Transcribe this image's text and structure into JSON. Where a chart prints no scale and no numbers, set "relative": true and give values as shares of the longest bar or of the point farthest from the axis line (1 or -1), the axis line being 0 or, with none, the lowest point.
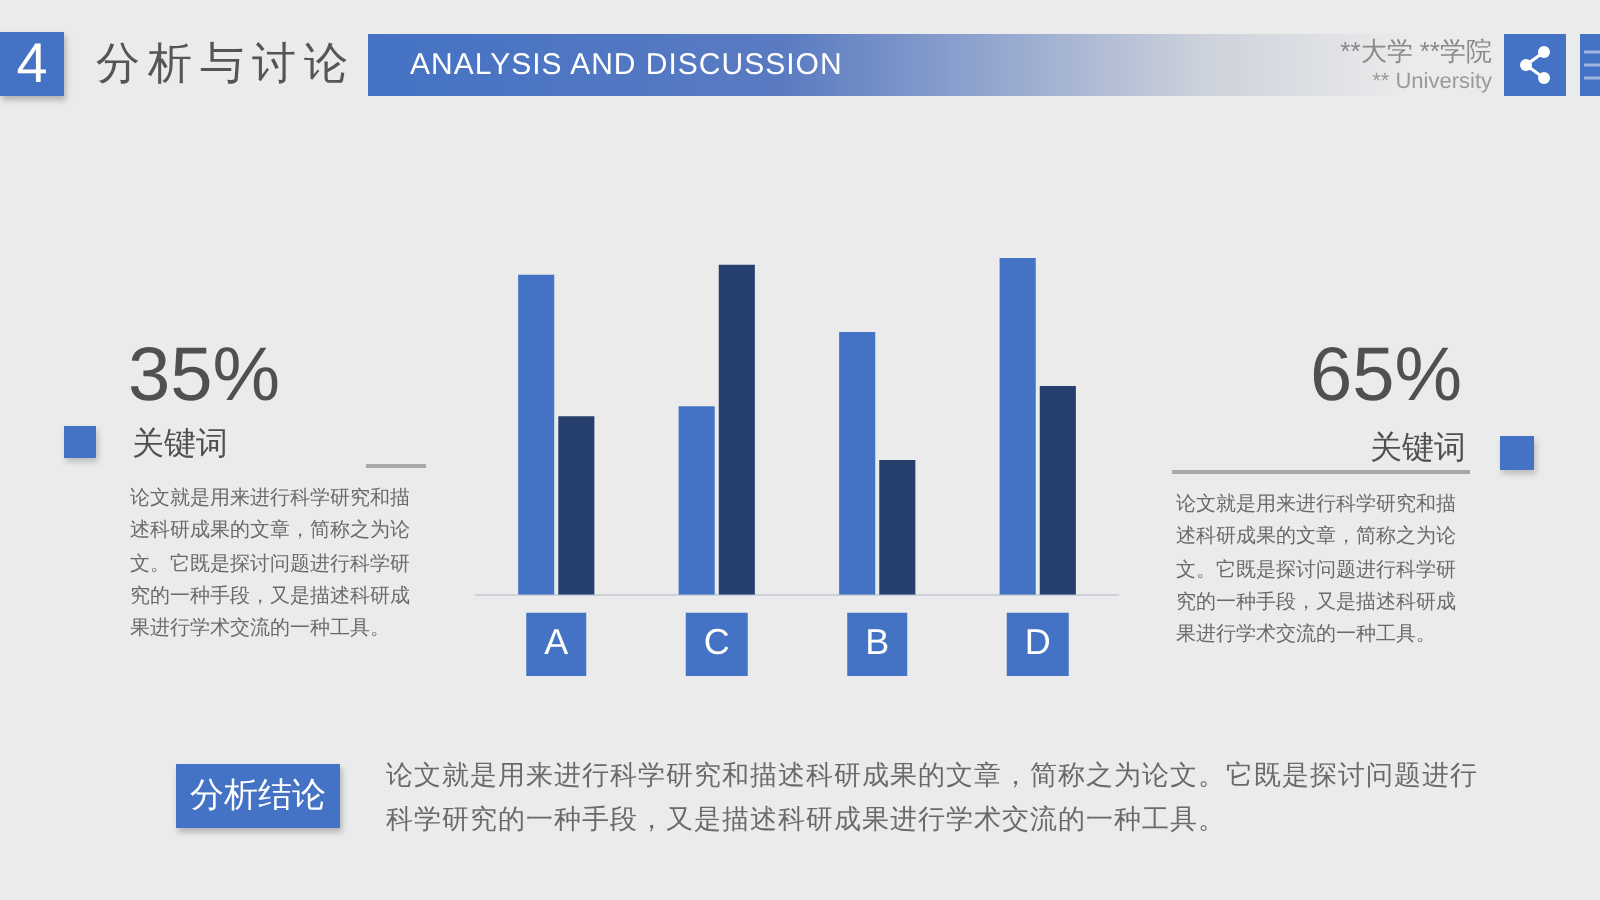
{
  "chart_data": {
    "type": "bar",
    "title": "分析与讨论",
    "subtitle": "ANALYSIS AND DISCUSSION",
    "categories": [
      "A",
      "C",
      "B",
      "D"
    ],
    "series": [
      {
        "color": "#4472c4",
        "values": [
          0.95,
          0.56,
          0.78,
          1
        ]
      },
      {
        "color": "#273f6d",
        "values": [
          0.53,
          0.98,
          0.4,
          0.62
        ]
      }
    ],
    "relative": true,
    "annotations": [
      "4",
      "**大学 **学院",
      "** University",
      "35%",
      "关键词",
      "论文就是用来进行科学研究和描述科研成果的文章，简称之为论文。它既是探讨问题进行科学研究的一种手段，又是描述科研成果进行学术交流的一种工具。",
      "65%",
      "关键词",
      "论文就是用来进行科学研究和描述科研成果的文章，简称之为论文。它既是探讨问题进行科学研究的一种手段，又是描述科研成果进行学术交流的一种工具。",
      "分析结论",
      "论文就是用来进行科学研究和描述科研成果的文章，简称之为论文。它既是探讨问题进行科学研究的一种手段，又是描述科研成果进行学术交流的一种工具。"
    ]
  }
}
